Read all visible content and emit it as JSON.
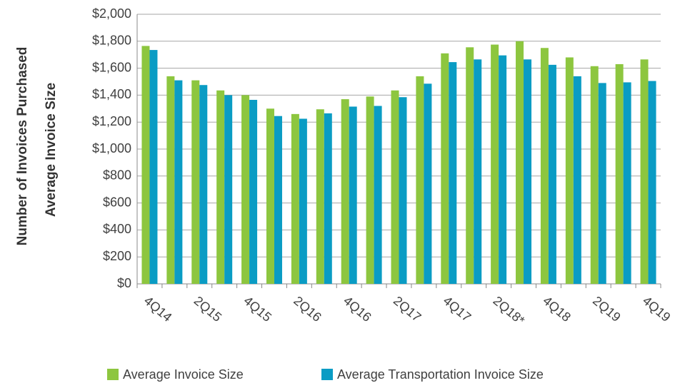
{
  "chart_data": {
    "type": "bar",
    "axis_labels": [
      "Number of Invoices Purchased",
      "Average Invoice Size"
    ],
    "categories": [
      "4Q14",
      null,
      "2Q15",
      null,
      "4Q15",
      null,
      "2Q16",
      null,
      "4Q16",
      null,
      "2Q17",
      null,
      "4Q17",
      null,
      "2Q18*",
      null,
      "4Q18",
      null,
      "2Q19",
      null,
      "4Q19"
    ],
    "series": [
      {
        "name": "Average Invoice Size",
        "color": "#8dc63f",
        "values": [
          1765,
          1540,
          1510,
          1435,
          1400,
          1300,
          1260,
          1295,
          1370,
          1390,
          1435,
          1540,
          1710,
          1755,
          1775,
          1800,
          1750,
          1680,
          1615,
          1630,
          1665
        ]
      },
      {
        "name": "Average Transportation Invoice Size",
        "color": "#0a9cc4",
        "values": [
          1735,
          1510,
          1475,
          1400,
          1365,
          1245,
          1225,
          1265,
          1315,
          1320,
          1385,
          1485,
          1645,
          1665,
          1695,
          1665,
          1625,
          1540,
          1490,
          1495,
          1505
        ]
      }
    ],
    "ylim": [
      0,
      2000
    ],
    "yticks": [
      {
        "value": 0,
        "label": "$0"
      },
      {
        "value": 200,
        "label": "$200"
      },
      {
        "value": 400,
        "label": "$400"
      },
      {
        "value": 600,
        "label": "$600"
      },
      {
        "value": 800,
        "label": "$800"
      },
      {
        "value": 1000,
        "label": "$1,000"
      },
      {
        "value": 1200,
        "label": "$1,200"
      },
      {
        "value": 1400,
        "label": "$1,400"
      },
      {
        "value": 1600,
        "label": "$1,600"
      },
      {
        "value": 1800,
        "label": "$1,800"
      },
      {
        "value": 2000,
        "label": "$2,000"
      }
    ],
    "grid": true,
    "legend": "bottom"
  }
}
